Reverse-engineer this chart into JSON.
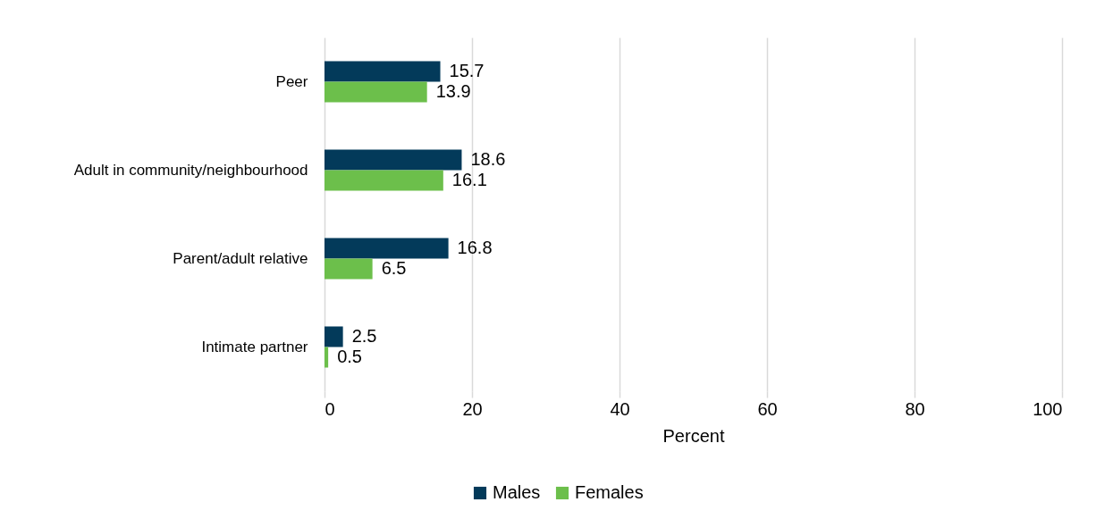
{
  "chart_data": {
    "type": "bar",
    "orientation": "horizontal",
    "categories": [
      "Peer",
      "Adult in community/neighbourhood",
      "Parent/adult relative",
      "Intimate partner"
    ],
    "series": [
      {
        "name": "Males",
        "color": "#033a5a",
        "values": [
          15.7,
          18.6,
          16.8,
          2.5
        ]
      },
      {
        "name": "Females",
        "color": "#6cbf4b",
        "values": [
          13.9,
          16.1,
          6.5,
          0.5
        ]
      }
    ],
    "xlabel": "Percent",
    "xlim": [
      0,
      100
    ],
    "xticks": [
      0,
      20,
      40,
      60,
      80,
      100
    ],
    "grid": "x",
    "legend": "bottom",
    "data_labels": true
  }
}
